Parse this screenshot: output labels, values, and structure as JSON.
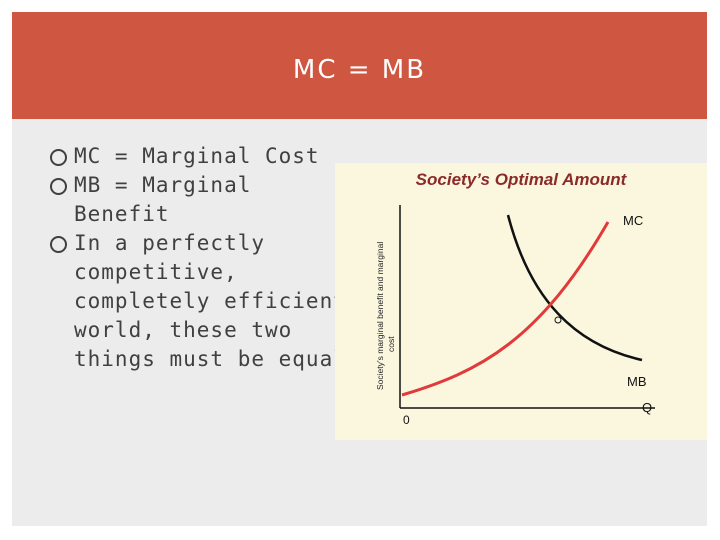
{
  "slide": {
    "title": "MC = MB",
    "bullets": [
      "MC = Marginal Cost",
      "MB = Marginal Benefit",
      "In a perfectly competitive, completely efficient world, these two things must be equal"
    ]
  },
  "chart_data": {
    "type": "line",
    "title": "Society’s Optimal Amount",
    "ylabel_line1": "Society’s marginal benefit and marginal",
    "ylabel_line2": "cost",
    "xlabel": "Q",
    "origin_label": "0",
    "series": [
      {
        "name": "MC",
        "color": "#e03a3a"
      },
      {
        "name": "MB",
        "color": "#111111"
      }
    ]
  },
  "colors": {
    "title_band": "#cf5640",
    "frame": "#ececec",
    "chart_bg": "#fbf7df",
    "text": "#404040"
  }
}
